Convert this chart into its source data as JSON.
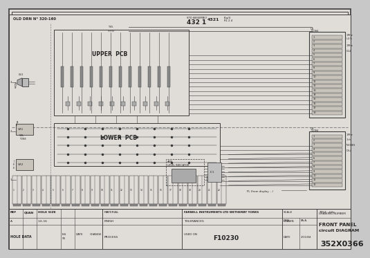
{
  "bg_color": "#c8c8c8",
  "paper_color": "#e0ddd8",
  "line_color": "#3a3a3a",
  "light_line": "#666666",
  "title": "FRONT PANEL\ncircuit DIAGRAM",
  "company": "FARNELL INSTRUMENTS LTD WETHERBY YORKS",
  "drawing_number": "352X0366",
  "used_on": "F10230",
  "title_label": "TITLE   title",
  "scale_label": "SCALE",
  "drawn_label": "DRAWN",
  "drn_label": "DRN",
  "chk_label": "PA.A.",
  "date_label": "DATE",
  "date_val": "1/11/84",
  "material_label": "MATERIAL",
  "finish_label": "FINISH",
  "process_label": "PROCESS",
  "tolerances_label": "TOLERANCES",
  "ref_label": "REF",
  "quan_label": "QUAN",
  "hole_size_label": "HOLE SIZE",
  "a_label": "A",
  "hole_size_val": "1.6-16",
  "iss_label": "ISS",
  "date2_label": "DATE",
  "change_label": "CHANGE",
  "hole_data_label": "HOLE DATA",
  "upper_pcb_label": "UPPER  PCB",
  "lower_pcb_label": "LOWER  PCB",
  "old_drn_label": "OLD DRN N° 320-160",
  "std_assembly": "STD ASSEMBLY",
  "drn_num": "432 1",
  "pl_label": "PL (from display ...)",
  "ul1_label": "U1\nTLO84",
  "ul2_label": "U1\nTLO84"
}
